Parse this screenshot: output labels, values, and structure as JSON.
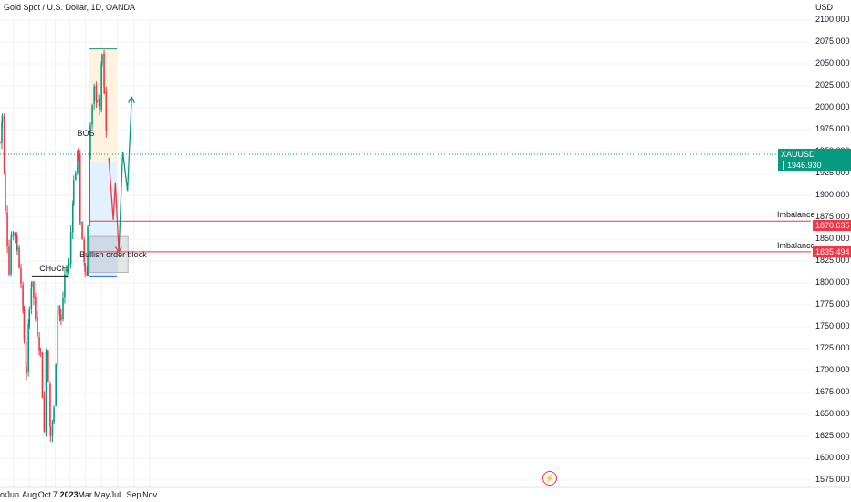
{
  "chart_data": {
    "type": "candlestick",
    "title": "Gold Spot / U.S. Dollar, 1D, OANDA",
    "currency_label": "USD",
    "ylim": [
      1575,
      2100
    ],
    "y_ticks": [
      1575,
      1600,
      1625,
      1650,
      1675,
      1700,
      1725,
      1750,
      1775,
      1800,
      1825,
      1850,
      1875,
      1900,
      1925,
      1950,
      1975,
      2000,
      2025,
      2050,
      2075,
      2100
    ],
    "x_tick_labels": [
      "or",
      "Jun",
      "Aug",
      "Oct",
      "7",
      "2023",
      "Mar",
      "May",
      "Jul",
      "Sep",
      "Nov"
    ],
    "symbol": "XAUUSD",
    "last_price": "1946.930",
    "price_path": [
      [
        "2022-04-11",
        1960
      ],
      [
        "2022-04-20",
        1990
      ],
      [
        "2022-05-02",
        1880
      ],
      [
        "2022-05-16",
        1815
      ],
      [
        "2022-05-25",
        1860
      ],
      [
        "2022-06-08",
        1855
      ],
      [
        "2022-06-16",
        1840
      ],
      [
        "2022-06-30",
        1805
      ],
      [
        "2022-07-12",
        1735
      ],
      [
        "2022-07-21",
        1700
      ],
      [
        "2022-08-01",
        1770
      ],
      [
        "2022-08-10",
        1805
      ],
      [
        "2022-08-24",
        1760
      ],
      [
        "2022-09-12",
        1720
      ],
      [
        "2022-09-26",
        1630
      ],
      [
        "2022-10-04",
        1730
      ],
      [
        "2022-10-20",
        1625
      ],
      [
        "2022-11-02",
        1655
      ],
      [
        "2022-11-17",
        1775
      ],
      [
        "2022-11-29",
        1755
      ],
      [
        "2022-12-13",
        1810
      ],
      [
        "2022-12-29",
        1820
      ],
      [
        "2023-01-16",
        1915
      ],
      [
        "2023-02-02",
        1950
      ],
      [
        "2023-02-10",
        1865
      ],
      [
        "2023-02-28",
        1815
      ],
      [
        "2023-03-07",
        1810
      ],
      [
        "2023-03-10",
        1865
      ],
      [
        "2023-03-20",
        1980
      ],
      [
        "2023-04-04",
        2020
      ],
      [
        "2023-04-14",
        2010
      ],
      [
        "2023-04-24",
        2000
      ],
      [
        "2023-05-04",
        2060
      ],
      [
        "2023-05-12",
        2015
      ],
      [
        "2023-05-19",
        1975
      ],
      [
        "2023-05-25",
        1945
      ]
    ],
    "annotations": {
      "choch": {
        "label": "CHoCH",
        "price": 1808,
        "from": "2022-08-10",
        "to": "2022-12-29"
      },
      "bos": {
        "label": "BOS",
        "price": 1962,
        "from": "2023-02-02",
        "to": "2023-03-14"
      },
      "supply_zone": {
        "from": "2023-03-17",
        "to": "2023-06-29",
        "top": 2067,
        "bottom": 1938
      },
      "demand_zone": {
        "from": "2023-03-17",
        "to": "2023-06-29",
        "top": 1938,
        "bottom": 1808
      },
      "order_block": {
        "label": "Bullish order block",
        "from": "2023-03-17",
        "to": "2023-08-10",
        "top": 1853,
        "bottom": 1812
      },
      "imbalance_1": {
        "label": "Imbalance",
        "price": 1870.635,
        "price_text": "1870.635",
        "from": "2023-03-17"
      },
      "imbalance_2": {
        "label": "Imbalance",
        "price": 1835.494,
        "price_text": "1835.494",
        "from": "2023-03-17"
      },
      "projection_down": [
        [
          "2023-05-29",
          1943
        ],
        [
          "2023-06-15",
          1872
        ],
        [
          "2023-06-23",
          1915
        ],
        [
          "2023-07-06",
          1835
        ]
      ],
      "projection_up": [
        [
          "2023-07-06",
          1835
        ],
        [
          "2023-07-21",
          1950
        ],
        [
          "2023-08-08",
          1905
        ],
        [
          "2023-08-24",
          2012
        ]
      ]
    },
    "colors": {
      "up": "#089981",
      "down": "#f23645",
      "grid": "#f0f3fa",
      "bos_choch": "#131722",
      "supply": "#fff3e0",
      "demand": "#e3f0fd",
      "order_block": "#b2b5be",
      "imbalance": "#f23645",
      "last_price": "#089981",
      "proj_down": "#f23645",
      "proj_up": "#089981"
    }
  }
}
